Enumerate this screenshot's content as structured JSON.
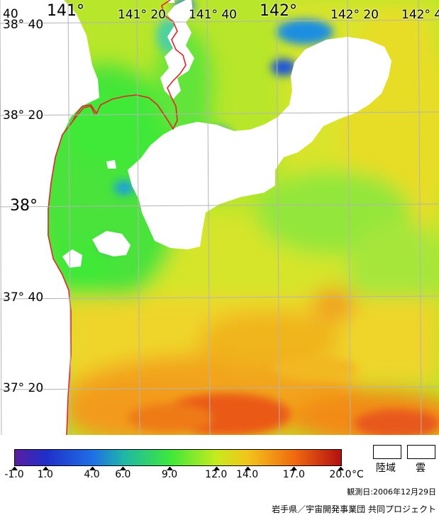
{
  "map": {
    "lon_labels": [
      {
        "id": "lon-140-40",
        "text": "40",
        "style": "minor"
      },
      {
        "id": "lon-141",
        "text": "141°",
        "style": "major"
      },
      {
        "id": "lon-141-20",
        "text": "141° 20",
        "style": "minor"
      },
      {
        "id": "lon-141-40",
        "text": "141° 40",
        "style": "minor"
      },
      {
        "id": "lon-142",
        "text": "142°",
        "style": "major"
      },
      {
        "id": "lon-142-20",
        "text": "142° 20",
        "style": "minor"
      },
      {
        "id": "lon-142-40",
        "text": "142° 4",
        "style": "minor"
      }
    ],
    "lat_labels": [
      {
        "id": "lat-38-40",
        "text": "38° 40",
        "style": "minor"
      },
      {
        "id": "lat-38-20",
        "text": "38° 20",
        "style": "minor"
      },
      {
        "id": "lat-38",
        "text": "38°",
        "style": "major"
      },
      {
        "id": "lat-37-40",
        "text": "37° 40",
        "style": "minor"
      },
      {
        "id": "lat-37-20",
        "text": "37° 20",
        "style": "minor"
      }
    ],
    "colors": {
      "land_mask": "#ffffff",
      "cloud_mask": "#ffffff",
      "coastline": "#e8202a",
      "graticule": "#b4b4b4"
    }
  },
  "legend": {
    "colorbar": {
      "min": -1.0,
      "max": 20.0,
      "stops": [
        {
          "value": -1.0,
          "color": "#5a1ea0"
        },
        {
          "value": 1.0,
          "color": "#1f2fc8"
        },
        {
          "value": 4.0,
          "color": "#1f6fe6"
        },
        {
          "value": 6.0,
          "color": "#1fb6a8"
        },
        {
          "value": 9.0,
          "color": "#3ee83a"
        },
        {
          "value": 12.0,
          "color": "#c8ea1e"
        },
        {
          "value": 14.0,
          "color": "#f2c51a"
        },
        {
          "value": 17.0,
          "color": "#f06a10"
        },
        {
          "value": 20.0,
          "color": "#b40f0f"
        }
      ]
    },
    "ticks": [
      "-1.0",
      "1.0",
      "4.0",
      "6.0",
      "9.0",
      "12.0",
      "14.0",
      "17.0",
      "20.0"
    ],
    "unit": "°C",
    "land_label": "陸域",
    "cloud_label": "雲"
  },
  "observation_date": "観測日:2006年12月29日",
  "credit": "岩手県／宇宙開発事業団 共同プロジェクト"
}
